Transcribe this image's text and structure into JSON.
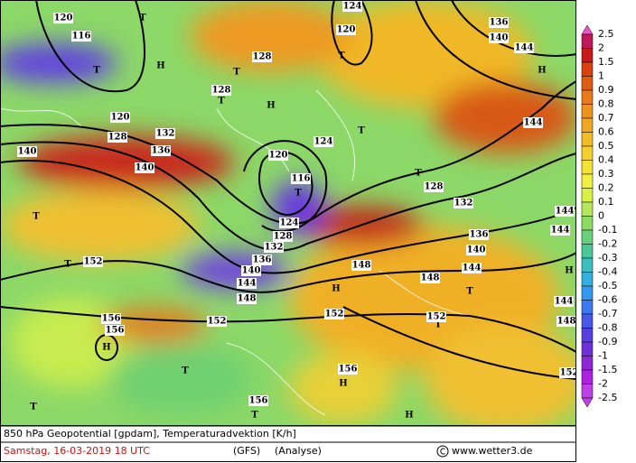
{
  "map": {
    "labels": [
      "120",
      "116",
      "T",
      "T",
      "H",
      "128",
      "T",
      "128",
      "T",
      "H",
      "120",
      "128",
      "132",
      "140",
      "140",
      "136",
      "124",
      "120",
      "T",
      "136",
      "140",
      "144",
      "H",
      "144",
      "120",
      "116",
      "T",
      "124",
      "128",
      "132",
      "136",
      "140",
      "144",
      "148",
      "T",
      "T",
      "152",
      "152",
      "156",
      "156",
      "H",
      "H",
      "152",
      "148",
      "148",
      "144",
      "140",
      "136",
      "132",
      "128",
      "T",
      "T",
      "124",
      "144",
      "144",
      "144",
      "148",
      "152",
      "T",
      "T",
      "156",
      "T",
      "156",
      "H",
      "H",
      "T",
      "H",
      "T",
      "152"
    ]
  },
  "colorbar": {
    "entries": [
      {
        "label": "2.5",
        "color": "#f050d0"
      },
      {
        "label": "2",
        "color": "#c0185a"
      },
      {
        "label": "1.5",
        "color": "#c81a1a"
      },
      {
        "label": "1",
        "color": "#d84010"
      },
      {
        "label": "0.9",
        "color": "#e05c12"
      },
      {
        "label": "0.8",
        "color": "#e87a18"
      },
      {
        "label": "0.7",
        "color": "#ee9220"
      },
      {
        "label": "0.6",
        "color": "#f0a822"
      },
      {
        "label": "0.5",
        "color": "#f2bc26"
      },
      {
        "label": "0.4",
        "color": "#f4d02c"
      },
      {
        "label": "0.3",
        "color": "#f4e234"
      },
      {
        "label": "0.2",
        "color": "#f0f040"
      },
      {
        "label": "0.1",
        "color": "#d8f048"
      },
      {
        "label": "0",
        "color": "#b4e85a"
      },
      {
        "label": "-0.1",
        "color": "#8cdc64"
      },
      {
        "label": "-0.2",
        "color": "#68d078"
      },
      {
        "label": "-0.3",
        "color": "#4cc898"
      },
      {
        "label": "-0.4",
        "color": "#3cc0c0"
      },
      {
        "label": "-0.5",
        "color": "#34b0e0"
      },
      {
        "label": "-0.6",
        "color": "#3498f0"
      },
      {
        "label": "-0.7",
        "color": "#3c78f0"
      },
      {
        "label": "-0.8",
        "color": "#4858e8"
      },
      {
        "label": "-0.9",
        "color": "#5840e0"
      },
      {
        "label": "-1",
        "color": "#7030d8"
      },
      {
        "label": "-1.5",
        "color": "#9028d8"
      },
      {
        "label": "-2",
        "color": "#b020e0"
      },
      {
        "label": "-2.5",
        "color": "#c040e8"
      }
    ]
  },
  "footer": {
    "title": "850 hPa Geopotential [gpdam], Temperaturadvektion [K/h]",
    "date": "Samstag, 16-03-2019  18 UTC",
    "model": "(GFS)",
    "run": "(Analyse)",
    "site": "www.wetter3.de"
  }
}
